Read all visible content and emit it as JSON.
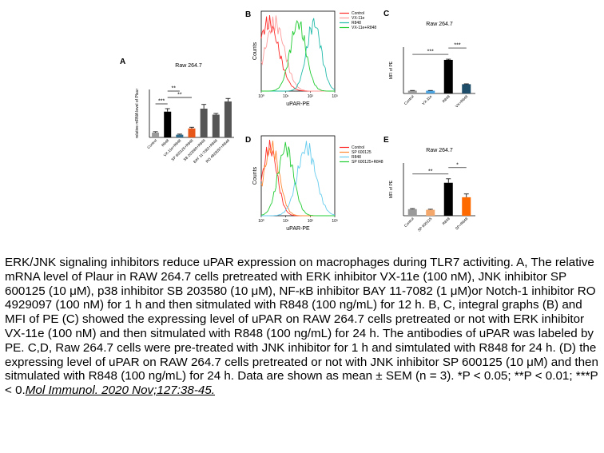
{
  "chart_data": [
    {
      "panel": "A",
      "type": "bar",
      "title": "Raw 264.7",
      "ylabel": "relative mRNA level of Plaur",
      "categories": [
        "Control",
        "R848",
        "VX-11e+R848",
        "SP 600125+R848",
        "SB 203580+R848",
        "BAY 11-7082+R848",
        "RO 4929097+R848"
      ],
      "values": [
        0.8,
        4.3,
        0.45,
        1.5,
        4.8,
        3.8,
        6.0
      ],
      "errors": [
        0.15,
        0.5,
        0.1,
        0.2,
        0.7,
        0.2,
        0.5
      ],
      "colors": [
        "#9a9a9a",
        "#000000",
        "#2e6b8a",
        "#e8571a",
        "#555555",
        "#555555",
        "#555555"
      ],
      "ylim": [
        0,
        8
      ],
      "significance": [
        {
          "from": 0,
          "to": 1,
          "label": "***"
        },
        {
          "from": 1,
          "to": 3,
          "label": "**"
        },
        {
          "from": 1,
          "to": 2,
          "label": "**"
        }
      ]
    },
    {
      "panel": "B",
      "type": "line",
      "xlabel": "uPAR-PE",
      "ylabel": "Counts",
      "legend": [
        "Control",
        "VX-11e",
        "R848",
        "VX-11e+R848"
      ],
      "colors": [
        "#ff2a2a",
        "#ff9999",
        "#22bbaa",
        "#22cc33"
      ],
      "peaks": [
        0.3,
        0.55,
        2.15,
        1.5
      ],
      "widths": [
        0.42,
        0.4,
        0.3,
        0.32
      ]
    },
    {
      "panel": "C",
      "type": "bar",
      "title": "Raw 264.7",
      "ylabel": "MFI of PE",
      "categories": [
        "Control",
        "VX-11e",
        "R848",
        "VX+R848"
      ],
      "values": [
        12,
        12,
        145,
        40
      ],
      "errors": [
        1,
        1,
        3,
        1.5
      ],
      "colors": [
        "#9a9a9a",
        "#4aa3df",
        "#000000",
        "#1f4e6b"
      ],
      "ylim": [
        0,
        200
      ],
      "significance": [
        {
          "from": 0,
          "to": 2,
          "label": "***"
        },
        {
          "from": 2,
          "to": 3,
          "label": "***"
        }
      ]
    },
    {
      "panel": "D",
      "type": "line",
      "xlabel": "uPAR-PE",
      "ylabel": "Counts",
      "legend": [
        "Control",
        "SP 600125",
        "R848",
        "SP 600125+R848"
      ],
      "colors": [
        "#ff2a2a",
        "#ff8833",
        "#66ccee",
        "#22cc33"
      ],
      "peaks": [
        0.35,
        0.42,
        1.85,
        1.0
      ],
      "widths": [
        0.3,
        0.32,
        0.38,
        0.32
      ]
    },
    {
      "panel": "E",
      "type": "bar",
      "title": "Raw 264.7",
      "ylabel": "MFI of PE",
      "categories": [
        "Control",
        "SP 600125",
        "R848",
        "SP+R848"
      ],
      "values": [
        10,
        9,
        50,
        28
      ],
      "errors": [
        0.8,
        0.8,
        6,
        5
      ],
      "colors": [
        "#9a9a9a",
        "#f5a86b",
        "#000000",
        "#ff6a00"
      ],
      "ylim": [
        0,
        80
      ],
      "significance": [
        {
          "from": 0,
          "to": 2,
          "label": "**"
        },
        {
          "from": 2,
          "to": 3,
          "label": "*"
        }
      ]
    }
  ],
  "caption": {
    "text": "ERK/JNK signaling inhibitors reduce uPAR expression on macrophages during TLR7 activiting. A, The relative mRNA level of Plaur in RAW 264.7 cells pretreated with ERK inhibitor VX-11e (100 nM), JNK inhibitor SP 600125 (10 μM), p38 inhibitor SB 203580 (10 μM), NF-κB inhibitor BAY 11-7082 (1 μM)or Notch-1 inhibitor RO 4929097 (100 nM) for 1 h and then sitmulated with R848 (100 ng/mL) for 12 h. B, C, integral graphs (B) and MFI of PE (C) showed the expressing level of uPAR on RAW 264.7 cells pretreated or not with ERK inhibitor VX-11e (100 nM) and then sitmulated with R848 (100 ng/mL) for 24 h. The antibodies of uPAR was labeled by PE. C,D, Raw 264.7 cells were pre-treated with JNK inhibitor for 1 h and simtulated with R848 for 24 h. (D) the expressing level of uPAR on RAW 264.7 cells pretreated or not with JNK inhibitor SP 600125 (10 μM) and then sitmulated with R848 (100 ng/mL) for 24 h. Data are shown as mean ± SEM (n = 3). *P < 0.05; **P < 0.01; ***P < 0.",
    "reference": "Mol Immunol. 2020 Nov;127:38-45."
  }
}
